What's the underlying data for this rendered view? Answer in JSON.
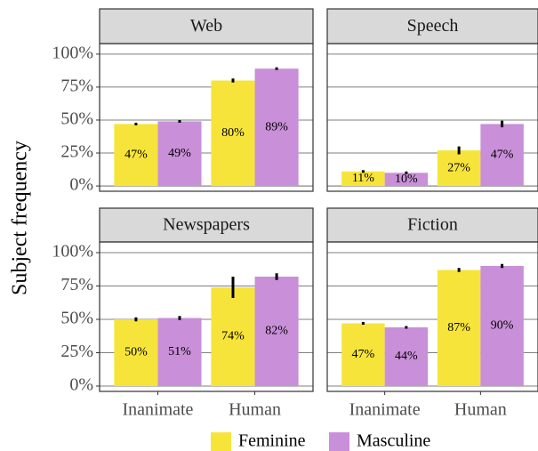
{
  "chart_data": {
    "type": "bar",
    "ylabel": "Subject frequency",
    "categories": [
      "Inanimate",
      "Human"
    ],
    "series": [
      {
        "name": "Feminine",
        "color": "#f7e43b"
      },
      {
        "name": "Masculine",
        "color": "#c98fd8"
      }
    ],
    "ylim": [
      -4,
      108
    ],
    "yticks": [
      {
        "value": 0,
        "label": "0%"
      },
      {
        "value": 25,
        "label": "25%"
      },
      {
        "value": 50,
        "label": "50%"
      },
      {
        "value": 75,
        "label": "75%"
      },
      {
        "value": 100,
        "label": "100%"
      }
    ],
    "grid": true,
    "facets": [
      {
        "title": "Web",
        "series": [
          {
            "values": [
              47,
              80
            ],
            "value_labels": [
              "47%",
              "80%"
            ],
            "errors": [
              1,
              1.5
            ]
          },
          {
            "values": [
              49,
              89
            ],
            "value_labels": [
              "49%",
              "89%"
            ],
            "errors": [
              1,
              1
            ]
          }
        ]
      },
      {
        "title": "Speech",
        "series": [
          {
            "values": [
              11,
              27
            ],
            "value_labels": [
              "11%",
              "27%"
            ],
            "errors": [
              1,
              3
            ]
          },
          {
            "values": [
              10,
              47
            ],
            "value_labels": [
              "10%",
              "47%"
            ],
            "errors": [
              1,
              2.5
            ]
          }
        ]
      },
      {
        "title": "Newspapers",
        "series": [
          {
            "values": [
              50,
              74
            ],
            "value_labels": [
              "50%",
              "74%"
            ],
            "errors": [
              1.5,
              8
            ]
          },
          {
            "values": [
              51,
              82
            ],
            "value_labels": [
              "51%",
              "82%"
            ],
            "errors": [
              1.5,
              2.5
            ]
          }
        ]
      },
      {
        "title": "Fiction",
        "series": [
          {
            "values": [
              47,
              87
            ],
            "value_labels": [
              "47%",
              "87%"
            ],
            "errors": [
              1,
              1.5
            ]
          },
          {
            "values": [
              44,
              90
            ],
            "value_labels": [
              "44%",
              "90%"
            ],
            "errors": [
              1,
              1.5
            ]
          }
        ]
      }
    ]
  }
}
